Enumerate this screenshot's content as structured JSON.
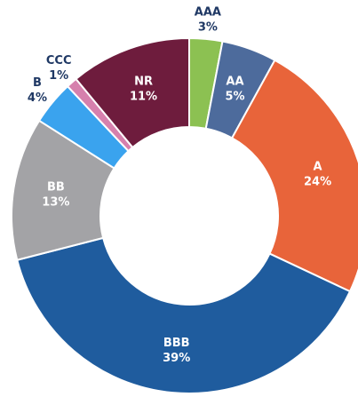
{
  "chart_data": {
    "type": "donut",
    "categories": [
      "AAA",
      "AA",
      "A",
      "BBB",
      "BB",
      "B",
      "CCC",
      "NR"
    ],
    "values": [
      3,
      5,
      24,
      39,
      13,
      4,
      1,
      11
    ],
    "value_labels": [
      "3%",
      "5%",
      "24%",
      "39%",
      "13%",
      "4%",
      "1%",
      "11%"
    ],
    "colors": [
      "#8cc152",
      "#4d6b9c",
      "#e8643a",
      "#1f5c9e",
      "#a3a3a6",
      "#3aa3ee",
      "#d680ad",
      "#6e1c3d"
    ]
  }
}
